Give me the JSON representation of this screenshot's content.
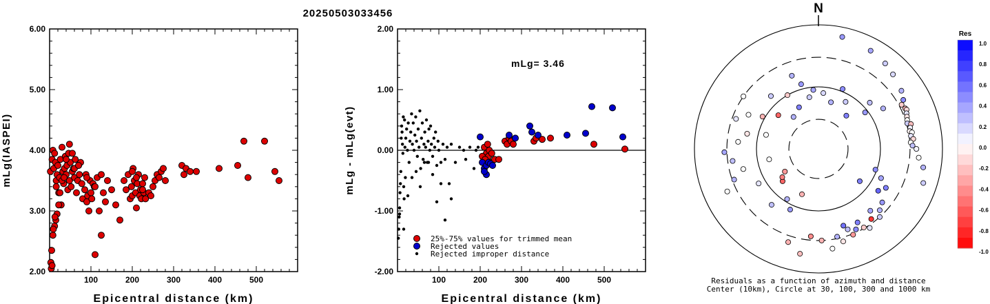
{
  "page_title": "20250503033456",
  "chart_data": [
    {
      "type": "scatter",
      "ylabel": "mLg(IASPEI)",
      "xlabel": "Epicentral distance (km)",
      "xlim": [
        0,
        600
      ],
      "ylim": [
        2.0,
        6.0
      ],
      "xticks": [
        "100",
        "200",
        "300",
        "400",
        "500"
      ],
      "yticks": [
        "2.00",
        "3.00",
        "4.00",
        "5.00",
        "6.00"
      ],
      "series": [
        {
          "color": "#dd0000",
          "x": [
            2,
            4,
            6,
            8,
            10,
            12,
            14,
            16,
            18,
            20,
            22,
            24,
            26,
            28,
            30,
            32,
            34,
            36,
            38,
            40,
            42,
            44,
            46,
            48,
            50,
            52,
            55,
            58,
            60,
            62,
            65,
            68,
            70,
            72,
            75,
            78,
            80,
            85,
            88,
            90,
            92,
            95,
            98,
            100,
            102,
            105,
            108,
            110,
            115,
            120,
            125,
            130,
            135,
            140,
            150,
            160,
            170,
            180,
            185,
            190,
            195,
            198,
            200,
            202,
            205,
            208,
            210,
            212,
            215,
            218,
            220,
            222,
            225,
            228,
            230,
            232,
            240,
            245,
            250,
            255,
            260,
            265,
            270,
            275,
            280,
            320,
            325,
            330,
            340,
            355,
            410,
            455,
            470,
            480,
            520,
            545,
            555,
            5,
            8,
            12,
            15,
            18,
            22,
            25,
            30,
            35,
            40,
            48,
            55,
            60,
            70,
            90,
            110,
            125,
            200,
            210,
            225,
            3,
            6,
            9,
            13,
            16
          ],
          "y": [
            3.65,
            2.05,
            3.85,
            4.0,
            3.7,
            3.95,
            3.8,
            3.5,
            3.6,
            3.75,
            3.3,
            3.55,
            3.85,
            3.1,
            4.05,
            3.65,
            3.45,
            3.7,
            3.9,
            3.6,
            3.75,
            3.35,
            3.95,
            3.5,
            3.8,
            3.4,
            3.65,
            3.7,
            3.55,
            3.85,
            3.3,
            3.5,
            3.75,
            3.6,
            3.8,
            3.45,
            3.2,
            3.35,
            3.6,
            3.15,
            3.25,
            3.0,
            3.5,
            3.3,
            3.2,
            3.45,
            3.4,
            2.28,
            3.55,
            3.0,
            3.6,
            3.3,
            3.15,
            3.5,
            3.35,
            3.1,
            2.85,
            3.5,
            3.35,
            3.6,
            3.2,
            3.4,
            3.25,
            3.7,
            3.5,
            3.3,
            3.05,
            3.45,
            3.6,
            3.25,
            3.35,
            3.2,
            3.45,
            3.3,
            3.55,
            3.2,
            3.3,
            3.25,
            3.4,
            3.5,
            3.6,
            3.55,
            3.65,
            3.7,
            3.5,
            3.75,
            3.6,
            3.7,
            3.65,
            3.65,
            3.7,
            3.75,
            4.15,
            3.55,
            4.15,
            3.65,
            3.5,
            2.35,
            2.6,
            2.75,
            2.85,
            2.95,
            3.1,
            3.3,
            3.5,
            3.55,
            3.85,
            4.1,
            3.95,
            3.7,
            3.75,
            3.55,
            3.4,
            2.6,
            3.65,
            3.55,
            3.35,
            2.15,
            2.1,
            2.7,
            2.9,
            3.4
          ]
        }
      ]
    },
    {
      "type": "scatter",
      "ylabel": "mLg - mLg(evt)",
      "xlabel": "Epicentral distance (km)",
      "xlim": [
        0,
        600
      ],
      "ylim": [
        -2.0,
        2.0
      ],
      "xticks": [
        "100",
        "200",
        "300",
        "400",
        "500"
      ],
      "yticks": [
        "-2.00",
        "-1.00",
        "0.00",
        "1.00",
        "2.00"
      ],
      "annotation": "mLg= 3.46",
      "legend": [
        {
          "label": "25%-75% values for trimmed mean",
          "color": "#dd0000"
        },
        {
          "label": "Rejected values",
          "color": "#0000cc"
        },
        {
          "label": "Rejected improper distance",
          "color": "#000000"
        }
      ],
      "series": [
        {
          "name": "25%-75% values for trimmed mean",
          "color": "#dd0000",
          "x": [
            210,
            215,
            218,
            220,
            222,
            225,
            228,
            205,
            212,
            235,
            245,
            260,
            265,
            270,
            275,
            280,
            330,
            335,
            350,
            370,
            475,
            550
          ],
          "y": [
            0.05,
            -0.05,
            0.1,
            -0.1,
            0.0,
            -0.2,
            -0.05,
            -0.1,
            -0.15,
            -0.15,
            -0.15,
            0.15,
            0.1,
            0.2,
            0.15,
            0.1,
            0.15,
            0.2,
            0.18,
            0.2,
            0.1,
            0.02
          ]
        },
        {
          "name": "Rejected values",
          "color": "#0000cc",
          "x": [
            200,
            205,
            210,
            215,
            220,
            225,
            230,
            215,
            210,
            270,
            285,
            320,
            325,
            340,
            410,
            455,
            470,
            520,
            545
          ],
          "y": [
            0.22,
            -0.2,
            -0.3,
            -0.25,
            -0.2,
            -0.22,
            -0.25,
            -0.4,
            -0.35,
            0.25,
            0.2,
            0.4,
            0.3,
            0.25,
            0.25,
            0.28,
            0.72,
            0.7,
            0.22
          ]
        },
        {
          "name": "Rejected improper distance",
          "color": "#000000",
          "x": [
            2,
            3,
            4,
            5,
            6,
            7,
            8,
            9,
            10,
            11,
            12,
            13,
            14,
            15,
            16,
            17,
            18,
            19,
            20,
            22,
            24,
            26,
            28,
            30,
            32,
            34,
            36,
            38,
            40,
            42,
            44,
            46,
            48,
            50,
            52,
            54,
            56,
            58,
            60,
            62,
            64,
            66,
            68,
            70,
            72,
            74,
            76,
            78,
            80,
            82,
            85,
            88,
            90,
            92,
            95,
            98,
            100,
            105,
            110,
            115,
            120,
            125,
            130,
            140,
            150,
            160,
            165,
            175,
            185,
            190,
            195,
            5,
            15,
            25,
            35,
            45,
            55,
            65,
            75,
            85,
            95,
            105,
            115,
            130
          ],
          "y": [
            -1.45,
            -1.3,
            -1.1,
            -0.95,
            -0.7,
            -0.55,
            -0.35,
            0.2,
            0.4,
            0.3,
            0.1,
            -0.05,
            0.55,
            -0.6,
            -0.8,
            0.5,
            0.05,
            -0.45,
            0.2,
            0.35,
            0.0,
            0.45,
            -0.2,
            0.15,
            0.3,
            0.6,
            0.1,
            0.45,
            0.0,
            0.25,
            0.55,
            0.15,
            -0.1,
            0.35,
            0.05,
            0.65,
            -0.3,
            0.2,
            0.45,
            -0.15,
            0.1,
            0.3,
            0.05,
            0.5,
            -0.2,
            0.15,
            0.35,
            0.0,
            0.4,
            0.1,
            -0.1,
            0.2,
            0.05,
            0.3,
            -0.25,
            0.15,
            0.0,
            -0.2,
            0.1,
            -0.15,
            0.05,
            -0.55,
            0.1,
            -0.2,
            0.05,
            0.0,
            -0.15,
            0.05,
            -0.3,
            0.0,
            0.05,
            -1.05,
            -1.3,
            -0.75,
            -0.45,
            -0.35,
            -0.6,
            -0.2,
            -0.2,
            -0.4,
            -0.85,
            -0.55,
            -1.15,
            -0.8
          ]
        }
      ]
    },
    {
      "type": "polar-scatter",
      "north_label": "N",
      "caption_line1": "Residuals as a function of azimuth and distance",
      "caption_line2": "Center (10km), Circle at 30, 100, 300 and 1000 km",
      "rings_km": [
        30,
        100,
        300,
        1000
      ],
      "colorbar": {
        "title": "Res",
        "ticks": [
          "1.0",
          "0.8",
          "0.6",
          "0.4",
          "0.2",
          "0.0",
          "-0.2",
          "-0.4",
          "-0.6",
          "-0.8",
          "-1.0"
        ],
        "max_color": "#0000ff",
        "mid_color": "#ffffff",
        "min_color": "#ff0000"
      },
      "points": [
        {
          "az": 12,
          "dist": 700,
          "res": 0.4
        },
        {
          "az": 28,
          "dist": 620,
          "res": 0.35
        },
        {
          "az": 38,
          "dist": 560,
          "res": 0.2
        },
        {
          "az": 45,
          "dist": 500,
          "res": 0.15
        },
        {
          "az": 55,
          "dist": 430,
          "res": 0.3
        },
        {
          "az": 60,
          "dist": 380,
          "res": 0.45
        },
        {
          "az": 62,
          "dist": 330,
          "res": -0.2
        },
        {
          "az": 65,
          "dist": 350,
          "res": -0.3
        },
        {
          "az": 66,
          "dist": 360,
          "res": -0.15
        },
        {
          "az": 68,
          "dist": 340,
          "res": 0.1
        },
        {
          "az": 70,
          "dist": 330,
          "res": -0.1
        },
        {
          "az": 72,
          "dist": 320,
          "res": 0.0
        },
        {
          "az": 74,
          "dist": 310,
          "res": 0.2
        },
        {
          "az": 75,
          "dist": 350,
          "res": -0.25
        },
        {
          "az": 77,
          "dist": 330,
          "res": 0.05
        },
        {
          "az": 79,
          "dist": 315,
          "res": -0.05
        },
        {
          "az": 80,
          "dist": 340,
          "res": 0.0
        },
        {
          "az": 82,
          "dist": 320,
          "res": 0.1
        },
        {
          "az": 84,
          "dist": 345,
          "res": -0.15
        },
        {
          "az": 86,
          "dist": 310,
          "res": 0.0
        },
        {
          "az": 88,
          "dist": 330,
          "res": 0.25
        },
        {
          "az": 90,
          "dist": 380,
          "res": 0.05
        },
        {
          "az": 95,
          "dist": 420,
          "res": 0.0
        },
        {
          "az": 100,
          "dist": 520,
          "res": 0.3
        },
        {
          "az": 108,
          "dist": 600,
          "res": 0.2
        },
        {
          "az": 120,
          "dist": 180,
          "res": 0.5
        },
        {
          "az": 125,
          "dist": 150,
          "res": 0.6
        },
        {
          "az": 130,
          "dist": 220,
          "res": 0.4
        },
        {
          "az": 135,
          "dist": 250,
          "res": 0.3
        },
        {
          "az": 138,
          "dist": 300,
          "res": 0.2
        },
        {
          "az": 140,
          "dist": 200,
          "res": 0.35
        },
        {
          "az": 143,
          "dist": 260,
          "res": -0.8
        },
        {
          "az": 147,
          "dist": 330,
          "res": 0.1
        },
        {
          "az": 150,
          "dist": 290,
          "res": -0.2
        },
        {
          "az": 152,
          "dist": 220,
          "res": 0.5
        },
        {
          "az": 155,
          "dist": 270,
          "res": 0.45
        },
        {
          "az": 158,
          "dist": 310,
          "res": -0.4
        },
        {
          "az": 160,
          "dist": 240,
          "res": 0.25
        },
        {
          "az": 162,
          "dist": 200,
          "res": 0.55
        },
        {
          "az": 165,
          "dist": 350,
          "res": -0.1
        },
        {
          "az": 168,
          "dist": 280,
          "res": 0.3
        },
        {
          "az": 172,
          "dist": 420,
          "res": 0.0
        },
        {
          "az": 178,
          "dist": 300,
          "res": -0.3
        },
        {
          "az": 185,
          "dist": 260,
          "res": -0.45
        },
        {
          "az": 190,
          "dist": 520,
          "res": -0.25
        },
        {
          "az": 198,
          "dist": 380,
          "res": -0.3
        },
        {
          "az": 205,
          "dist": 120,
          "res": 0.4
        },
        {
          "az": 212,
          "dist": 90,
          "res": 0.3
        },
        {
          "az": 220,
          "dist": 150,
          "res": 0.25
        },
        {
          "az": 228,
          "dist": 60,
          "res": -0.6
        },
        {
          "az": 232,
          "dist": 55,
          "res": -0.5
        },
        {
          "az": 236,
          "dist": 45,
          "res": -0.4
        },
        {
          "az": 240,
          "dist": 130,
          "res": 0.1
        },
        {
          "az": 245,
          "dist": 420,
          "res": 0.0
        },
        {
          "az": 250,
          "dist": 280,
          "res": 0.3
        },
        {
          "az": 255,
          "dist": 180,
          "res": 0.0
        },
        {
          "az": 262,
          "dist": 250,
          "res": 0.25
        },
        {
          "az": 268,
          "dist": 330,
          "res": 0.35
        },
        {
          "az": 275,
          "dist": 200,
          "res": 0.0
        },
        {
          "az": 282,
          "dist": 150,
          "res": -0.1
        },
        {
          "az": 290,
          "dist": 260,
          "res": 0.1
        },
        {
          "az": 296,
          "dist": 180,
          "res": 0.0
        },
        {
          "az": 300,
          "dist": 110,
          "res": -0.3
        },
        {
          "az": 305,
          "dist": 300,
          "res": 0.0
        },
        {
          "az": 310,
          "dist": 70,
          "res": -0.6
        },
        {
          "az": 318,
          "dist": 140,
          "res": 0.2
        },
        {
          "az": 322,
          "dist": 45,
          "res": 0.3
        },
        {
          "az": 330,
          "dist": 100,
          "res": -0.2
        },
        {
          "az": 335,
          "dist": 55,
          "res": 0.5
        },
        {
          "az": 340,
          "dist": 180,
          "res": 0.3
        },
        {
          "az": 345,
          "dist": 120,
          "res": 0.4
        },
        {
          "az": 350,
          "dist": 70,
          "res": 0.2
        },
        {
          "az": 355,
          "dist": 90,
          "res": 0.35
        },
        {
          "az": 5,
          "dist": 80,
          "res": 0.15
        },
        {
          "az": 15,
          "dist": 60,
          "res": 0.3
        },
        {
          "az": 22,
          "dist": 110,
          "res": 0.45
        },
        {
          "az": 30,
          "dist": 75,
          "res": 0.2
        },
        {
          "az": 40,
          "dist": 50,
          "res": 0.5
        },
        {
          "az": 48,
          "dist": 130,
          "res": 0.25
        },
        {
          "az": 52,
          "dist": 90,
          "res": 0.4
        },
        {
          "az": 58,
          "dist": 170,
          "res": 0.3
        },
        {
          "az": 110,
          "dist": 95,
          "res": 0.45
        },
        {
          "az": 115,
          "dist": 130,
          "res": 0.35
        },
        {
          "az": 128,
          "dist": 70,
          "res": 0.5
        },
        {
          "az": 200,
          "dist": 60,
          "res": -0.3
        },
        {
          "az": 258,
          "dist": 65,
          "res": 0.0
        },
        {
          "az": 285,
          "dist": 75,
          "res": 0.0
        }
      ]
    }
  ]
}
